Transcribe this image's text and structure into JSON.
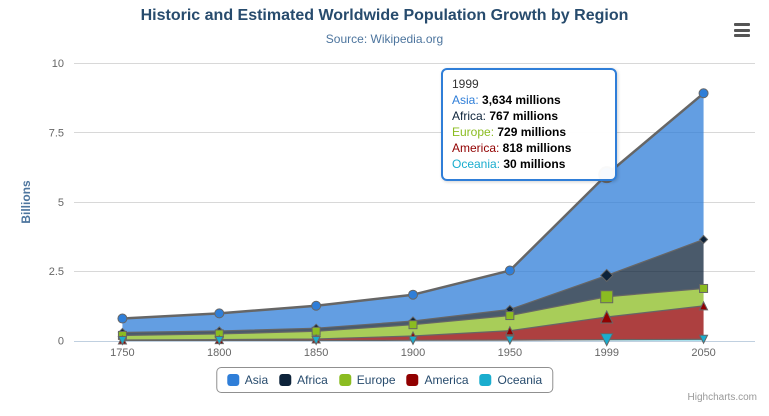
{
  "chart_data": {
    "type": "area",
    "stacking": "normal",
    "title": "Historic and Estimated Worldwide Population Growth by Region",
    "subtitle": "Source: Wikipedia.org",
    "categories": [
      "1750",
      "1800",
      "1850",
      "1900",
      "1950",
      "1999",
      "2050"
    ],
    "series": [
      {
        "name": "Asia",
        "color": "#2f7ed8",
        "marker": "circle",
        "data": [
          502,
          635,
          809,
          947,
          1402,
          3634,
          5268
        ]
      },
      {
        "name": "Africa",
        "color": "#0d233a",
        "marker": "diamond",
        "data": [
          106,
          107,
          111,
          133,
          221,
          767,
          1766
        ]
      },
      {
        "name": "Europe",
        "color": "#8bbc21",
        "marker": "square",
        "data": [
          163,
          203,
          276,
          408,
          547,
          729,
          628
        ]
      },
      {
        "name": "America",
        "color": "#910000",
        "marker": "triangle-up",
        "data": [
          18,
          31,
          54,
          156,
          339,
          818,
          1201
        ]
      },
      {
        "name": "Oceania",
        "color": "#1aadce",
        "marker": "triangle-down",
        "data": [
          2,
          2,
          2,
          6,
          13,
          30,
          46
        ]
      }
    ],
    "unit": "millions",
    "y_divisor": 1000,
    "ylabel": "Billions",
    "ylim": [
      0,
      10
    ],
    "yticks": [
      0,
      2.5,
      5,
      7.5,
      10
    ],
    "grid": true,
    "legend_position": "bottom",
    "line_color": "#666666",
    "fill_opacity": 0.75,
    "grid_color": "#d8d8d8",
    "axis_line_color": "#c0d0e0",
    "label_color": "#666666",
    "ylabel_color": "#4d759e",
    "hover_index": 5
  },
  "tooltip": {
    "header": "1999",
    "border_color": "#2f7ed8",
    "rows": [
      {
        "name": "Asia",
        "value": "3,634 millions"
      },
      {
        "name": "Africa",
        "value": "767 millions"
      },
      {
        "name": "Europe",
        "value": "729 millions"
      },
      {
        "name": "America",
        "value": "818 millions"
      },
      {
        "name": "Oceania",
        "value": "30 millions"
      }
    ]
  },
  "toolbar": {
    "menu_icon": "hamburger-menu-icon"
  },
  "credits": {
    "label": "Highcharts.com"
  }
}
